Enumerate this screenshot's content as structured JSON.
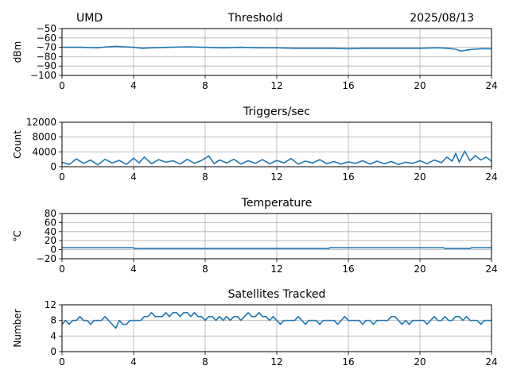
{
  "header": {
    "left": "UMD",
    "center": "Threshold",
    "right": "2025/08/13"
  },
  "chart_data": [
    {
      "type": "line",
      "title": "",
      "xlabel": "",
      "ylabel": "dBm",
      "xlim": [
        0,
        24
      ],
      "ylim": [
        -100,
        -50
      ],
      "xticks": [
        0,
        4,
        8,
        12,
        16,
        20,
        24
      ],
      "yticks": [
        -100,
        -90,
        -80,
        -70,
        -60,
        -50
      ],
      "ytick_labels": [
        "−100",
        "−90",
        "−80",
        "−70",
        "−60",
        "−50"
      ],
      "grid": true,
      "series": [
        {
          "color": "#1f77b4",
          "x": [
            0,
            1,
            2,
            2.5,
            3,
            3.5,
            4,
            4.5,
            5,
            6,
            7,
            8,
            9,
            10,
            11,
            12,
            13,
            14,
            15,
            16,
            17,
            18,
            19,
            20,
            21,
            21.5,
            22,
            22.3,
            22.6,
            23,
            23.5,
            24
          ],
          "y": [
            -70,
            -70,
            -70.5,
            -69.5,
            -69,
            -69.5,
            -70,
            -71,
            -70.5,
            -70,
            -69.5,
            -70,
            -70.5,
            -70,
            -70.5,
            -70.5,
            -71,
            -71,
            -71,
            -71.5,
            -71,
            -71,
            -71,
            -71,
            -70.5,
            -71,
            -72,
            -74,
            -73,
            -72,
            -71.5,
            -71.5
          ]
        }
      ]
    },
    {
      "type": "line",
      "title": "Triggers/sec",
      "xlabel": "",
      "ylabel": "Count",
      "xlim": [
        0,
        24
      ],
      "ylim": [
        0,
        12000
      ],
      "xticks": [
        0,
        4,
        8,
        12,
        16,
        20,
        24
      ],
      "yticks": [
        0,
        4000,
        8000,
        12000
      ],
      "ytick_labels": [
        "0",
        "4000",
        "8000",
        "12000"
      ],
      "grid": true,
      "series": [
        {
          "color": "#1f77b4",
          "x": [
            0,
            0.4,
            0.8,
            1.2,
            1.6,
            2,
            2.4,
            2.8,
            3.2,
            3.6,
            4,
            4.3,
            4.6,
            5,
            5.4,
            5.8,
            6.2,
            6.6,
            7,
            7.4,
            7.8,
            8.2,
            8.5,
            8.8,
            9.2,
            9.6,
            10,
            10.4,
            10.8,
            11.2,
            11.6,
            12,
            12.4,
            12.8,
            13.2,
            13.6,
            14,
            14.4,
            14.8,
            15.2,
            15.6,
            16,
            16.4,
            16.8,
            17.2,
            17.6,
            18,
            18.4,
            18.8,
            19.2,
            19.6,
            20,
            20.4,
            20.8,
            21.2,
            21.5,
            21.8,
            22,
            22.2,
            22.5,
            22.8,
            23.1,
            23.4,
            23.7,
            24
          ],
          "y": [
            1200,
            600,
            2100,
            900,
            1800,
            500,
            2000,
            1000,
            1700,
            600,
            2300,
            1000,
            2600,
            800,
            1900,
            1200,
            1600,
            700,
            2000,
            900,
            1700,
            2900,
            800,
            1800,
            1000,
            2000,
            700,
            1600,
            900,
            1900,
            800,
            1700,
            1000,
            2200,
            700,
            1500,
            1000,
            1900,
            800,
            1400,
            700,
            1300,
            900,
            1600,
            700,
            1500,
            800,
            1400,
            600,
            1200,
            900,
            1600,
            800,
            1800,
            1100,
            2600,
            1500,
            3600,
            1200,
            4200,
            1600,
            3000,
            1800,
            2600,
            1500
          ]
        }
      ]
    },
    {
      "type": "line",
      "title": "Temperature",
      "xlabel": "",
      "ylabel": "°C",
      "xlim": [
        0,
        24
      ],
      "ylim": [
        -20,
        80
      ],
      "xticks": [
        0,
        4,
        8,
        12,
        16,
        20,
        24
      ],
      "yticks": [
        -20,
        0,
        20,
        40,
        60,
        80
      ],
      "ytick_labels": [
        "−20",
        "0",
        "20",
        "40",
        "60",
        "80"
      ],
      "grid": true,
      "series": [
        {
          "color": "#1f77b4",
          "x": [
            0,
            3.95,
            4.05,
            14.9,
            15.0,
            21.3,
            21.4,
            22.8,
            22.9,
            24
          ],
          "y": [
            4.5,
            4.5,
            3,
            3,
            4.5,
            4.5,
            3,
            3,
            4.5,
            4.5
          ]
        }
      ]
    },
    {
      "type": "line",
      "title": "Satellites Tracked",
      "xlabel": "",
      "ylabel": "Number",
      "xlim": [
        0,
        24
      ],
      "ylim": [
        0,
        12
      ],
      "xticks": [
        0,
        4,
        8,
        12,
        16,
        20,
        24
      ],
      "yticks": [
        0,
        4,
        8,
        12
      ],
      "ytick_labels": [
        "0",
        "4",
        "8",
        "12"
      ],
      "grid": true,
      "series": [
        {
          "color": "#1f77b4",
          "x": [
            0,
            0.2,
            0.4,
            0.6,
            0.8,
            1.0,
            1.2,
            1.4,
            1.6,
            1.8,
            2.0,
            2.2,
            2.4,
            2.6,
            2.8,
            3.0,
            3.2,
            3.4,
            3.6,
            3.8,
            4.0,
            4.2,
            4.4,
            4.6,
            4.8,
            5.0,
            5.2,
            5.4,
            5.6,
            5.8,
            6.0,
            6.2,
            6.4,
            6.6,
            6.8,
            7.0,
            7.2,
            7.4,
            7.6,
            7.8,
            8.0,
            8.2,
            8.4,
            8.6,
            8.8,
            9.0,
            9.2,
            9.4,
            9.6,
            9.8,
            10.0,
            10.2,
            10.4,
            10.6,
            10.8,
            11.0,
            11.2,
            11.4,
            11.6,
            11.8,
            12.0,
            12.2,
            12.4,
            12.6,
            12.8,
            13.0,
            13.2,
            13.4,
            13.6,
            13.8,
            14.0,
            14.2,
            14.4,
            14.6,
            14.8,
            15.0,
            15.2,
            15.4,
            15.6,
            15.8,
            16.0,
            16.2,
            16.4,
            16.6,
            16.8,
            17.0,
            17.2,
            17.4,
            17.6,
            17.8,
            18.0,
            18.2,
            18.4,
            18.6,
            18.8,
            19.0,
            19.2,
            19.4,
            19.6,
            19.8,
            20.0,
            20.2,
            20.4,
            20.6,
            20.8,
            21.0,
            21.2,
            21.4,
            21.6,
            21.8,
            22.0,
            22.2,
            22.4,
            22.6,
            22.8,
            23.0,
            23.2,
            23.4,
            23.6,
            23.8,
            24.0
          ],
          "y": [
            7,
            8,
            7,
            8,
            8,
            9,
            8,
            8,
            7,
            8,
            8,
            8,
            9,
            8,
            7,
            6,
            8,
            7,
            7,
            8,
            8,
            8,
            8,
            9,
            9,
            10,
            9,
            9,
            9,
            10,
            9,
            10,
            10,
            9,
            10,
            10,
            9,
            10,
            9,
            9,
            8,
            9,
            9,
            8,
            9,
            8,
            9,
            8,
            9,
            9,
            8,
            9,
            10,
            9,
            9,
            10,
            9,
            9,
            8,
            9,
            8,
            7,
            8,
            8,
            8,
            8,
            9,
            8,
            7,
            8,
            8,
            8,
            7,
            8,
            8,
            8,
            8,
            7,
            8,
            9,
            8,
            8,
            8,
            8,
            7,
            8,
            8,
            7,
            8,
            8,
            8,
            8,
            9,
            9,
            8,
            7,
            8,
            7,
            8,
            8,
            8,
            8,
            7,
            8,
            9,
            8,
            8,
            9,
            8,
            8,
            9,
            9,
            8,
            9,
            8,
            8,
            8,
            7,
            8,
            8,
            8
          ]
        }
      ]
    }
  ]
}
